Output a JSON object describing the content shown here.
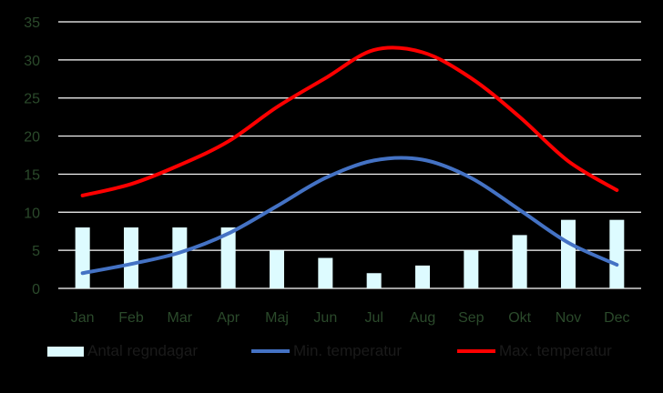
{
  "colors": {
    "background": "#000000",
    "grid": "#ffffff",
    "tick_label": "#2b4a2b",
    "bars": "#ddfbff",
    "min_line": "#4472c4",
    "max_line": "#ff0000"
  },
  "chart_data": {
    "type": "bar",
    "categories": [
      "Jan",
      "Feb",
      "Mar",
      "Apr",
      "Maj",
      "Jun",
      "Jul",
      "Aug",
      "Sep",
      "Okt",
      "Nov",
      "Dec"
    ],
    "ylim": [
      0,
      35
    ],
    "yticks": [
      0,
      5,
      10,
      15,
      20,
      25,
      30,
      35
    ],
    "grid": true,
    "legend_position": "bottom",
    "series": [
      {
        "name": "Antal regndagar",
        "type": "bar",
        "values": [
          8,
          8,
          8,
          8,
          5,
          4,
          2,
          3,
          5,
          7,
          9,
          9
        ]
      },
      {
        "name": "Min. temperatur",
        "type": "line",
        "values": [
          2.0,
          3.2,
          4.7,
          7.2,
          10.8,
          14.5,
          16.8,
          16.9,
          14.5,
          10.3,
          6.0,
          3.1
        ]
      },
      {
        "name": "Max. temperatur",
        "type": "line",
        "values": [
          12.2,
          13.7,
          16.2,
          19.3,
          23.8,
          27.6,
          31.3,
          31.0,
          27.6,
          22.5,
          16.7,
          12.9
        ]
      }
    ]
  }
}
